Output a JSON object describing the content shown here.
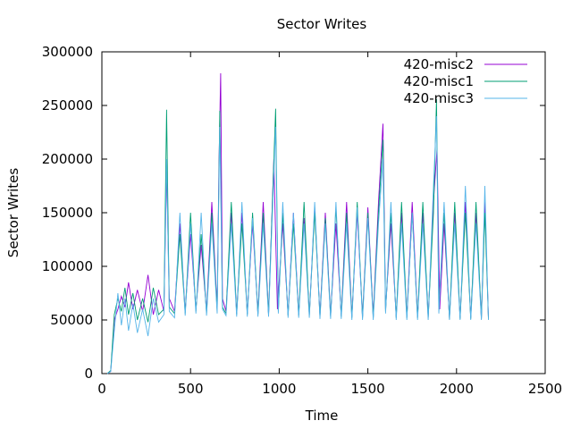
{
  "chart_data": {
    "type": "line",
    "title": "Sector Writes",
    "xlabel": "Time",
    "ylabel": "Sector Writes",
    "xlim": [
      0,
      2500
    ],
    "ylim": [
      0,
      300000
    ],
    "x_ticks": [
      "0",
      "500",
      "1000",
      "1500",
      "2000",
      "2500"
    ],
    "y_ticks": [
      "0",
      "50000",
      "100000",
      "150000",
      "200000",
      "250000",
      "300000"
    ],
    "grid": false,
    "legend_position": "top-right",
    "series": [
      {
        "name": "420-misc2",
        "color": "#9400d3",
        "points": [
          [
            0,
            0
          ],
          [
            30,
            0
          ],
          [
            50,
            2000
          ],
          [
            70,
            50000
          ],
          [
            90,
            60000
          ],
          [
            110,
            72000
          ],
          [
            130,
            62000
          ],
          [
            150,
            85000
          ],
          [
            175,
            60000
          ],
          [
            200,
            78000
          ],
          [
            230,
            58000
          ],
          [
            260,
            92000
          ],
          [
            290,
            55000
          ],
          [
            320,
            78000
          ],
          [
            350,
            58000
          ],
          [
            365,
            190000
          ],
          [
            380,
            70000
          ],
          [
            410,
            58000
          ],
          [
            440,
            140000
          ],
          [
            470,
            58000
          ],
          [
            500,
            130000
          ],
          [
            530,
            60000
          ],
          [
            560,
            120000
          ],
          [
            590,
            58000
          ],
          [
            620,
            160000
          ],
          [
            650,
            60000
          ],
          [
            660,
            190000
          ],
          [
            670,
            280000
          ],
          [
            680,
            70000
          ],
          [
            700,
            58000
          ],
          [
            730,
            150000
          ],
          [
            760,
            56000
          ],
          [
            790,
            150000
          ],
          [
            820,
            56000
          ],
          [
            850,
            140000
          ],
          [
            880,
            56000
          ],
          [
            910,
            160000
          ],
          [
            940,
            55000
          ],
          [
            970,
            200000
          ],
          [
            990,
            60000
          ],
          [
            1020,
            140000
          ],
          [
            1050,
            55000
          ],
          [
            1080,
            150000
          ],
          [
            1110,
            55000
          ],
          [
            1140,
            145000
          ],
          [
            1170,
            55000
          ],
          [
            1200,
            155000
          ],
          [
            1230,
            54000
          ],
          [
            1260,
            150000
          ],
          [
            1290,
            54000
          ],
          [
            1320,
            140000
          ],
          [
            1350,
            54000
          ],
          [
            1380,
            160000
          ],
          [
            1410,
            53000
          ],
          [
            1440,
            150000
          ],
          [
            1470,
            53000
          ],
          [
            1500,
            155000
          ],
          [
            1530,
            53000
          ],
          [
            1560,
            160000
          ],
          [
            1585,
            233000
          ],
          [
            1600,
            60000
          ],
          [
            1630,
            140000
          ],
          [
            1660,
            53000
          ],
          [
            1690,
            150000
          ],
          [
            1720,
            53000
          ],
          [
            1750,
            160000
          ],
          [
            1780,
            53000
          ],
          [
            1810,
            150000
          ],
          [
            1840,
            53000
          ],
          [
            1870,
            160000
          ],
          [
            1890,
            210000
          ],
          [
            1905,
            60000
          ],
          [
            1930,
            140000
          ],
          [
            1960,
            52000
          ],
          [
            1990,
            150000
          ],
          [
            2020,
            52000
          ],
          [
            2050,
            160000
          ],
          [
            2080,
            52000
          ],
          [
            2110,
            150000
          ],
          [
            2140,
            52000
          ],
          [
            2160,
            160000
          ],
          [
            2180,
            52000
          ]
        ]
      },
      {
        "name": "420-misc1",
        "color": "#009e73",
        "points": [
          [
            0,
            0
          ],
          [
            30,
            0
          ],
          [
            50,
            3000
          ],
          [
            70,
            55000
          ],
          [
            90,
            70000
          ],
          [
            110,
            58000
          ],
          [
            130,
            80000
          ],
          [
            150,
            55000
          ],
          [
            175,
            75000
          ],
          [
            200,
            50000
          ],
          [
            230,
            70000
          ],
          [
            260,
            48000
          ],
          [
            290,
            80000
          ],
          [
            320,
            55000
          ],
          [
            350,
            60000
          ],
          [
            365,
            246000
          ],
          [
            380,
            62000
          ],
          [
            410,
            56000
          ],
          [
            440,
            130000
          ],
          [
            470,
            56000
          ],
          [
            500,
            150000
          ],
          [
            530,
            58000
          ],
          [
            560,
            130000
          ],
          [
            590,
            56000
          ],
          [
            620,
            150000
          ],
          [
            650,
            58000
          ],
          [
            665,
            245000
          ],
          [
            680,
            62000
          ],
          [
            700,
            56000
          ],
          [
            730,
            160000
          ],
          [
            760,
            55000
          ],
          [
            790,
            140000
          ],
          [
            820,
            55000
          ],
          [
            850,
            150000
          ],
          [
            880,
            55000
          ],
          [
            910,
            150000
          ],
          [
            940,
            55000
          ],
          [
            980,
            247000
          ],
          [
            995,
            58000
          ],
          [
            1020,
            150000
          ],
          [
            1050,
            54000
          ],
          [
            1080,
            140000
          ],
          [
            1110,
            54000
          ],
          [
            1140,
            160000
          ],
          [
            1170,
            54000
          ],
          [
            1200,
            150000
          ],
          [
            1230,
            53000
          ],
          [
            1260,
            145000
          ],
          [
            1290,
            53000
          ],
          [
            1320,
            155000
          ],
          [
            1350,
            53000
          ],
          [
            1380,
            150000
          ],
          [
            1410,
            52000
          ],
          [
            1440,
            160000
          ],
          [
            1470,
            52000
          ],
          [
            1500,
            150000
          ],
          [
            1530,
            52000
          ],
          [
            1560,
            150000
          ],
          [
            1585,
            218000
          ],
          [
            1600,
            58000
          ],
          [
            1630,
            150000
          ],
          [
            1660,
            52000
          ],
          [
            1690,
            160000
          ],
          [
            1720,
            52000
          ],
          [
            1750,
            150000
          ],
          [
            1780,
            52000
          ],
          [
            1810,
            160000
          ],
          [
            1840,
            52000
          ],
          [
            1870,
            150000
          ],
          [
            1887,
            256000
          ],
          [
            1900,
            58000
          ],
          [
            1930,
            150000
          ],
          [
            1960,
            51000
          ],
          [
            1990,
            160000
          ],
          [
            2020,
            51000
          ],
          [
            2050,
            150000
          ],
          [
            2080,
            51000
          ],
          [
            2110,
            160000
          ],
          [
            2140,
            51000
          ],
          [
            2160,
            150000
          ],
          [
            2180,
            51000
          ]
        ]
      },
      {
        "name": "420-misc3",
        "color": "#56b4e9",
        "points": [
          [
            0,
            0
          ],
          [
            30,
            0
          ],
          [
            50,
            2000
          ],
          [
            70,
            40000
          ],
          [
            90,
            75000
          ],
          [
            110,
            45000
          ],
          [
            130,
            70000
          ],
          [
            150,
            40000
          ],
          [
            175,
            65000
          ],
          [
            200,
            38000
          ],
          [
            230,
            60000
          ],
          [
            260,
            35000
          ],
          [
            290,
            70000
          ],
          [
            320,
            48000
          ],
          [
            350,
            55000
          ],
          [
            365,
            200000
          ],
          [
            380,
            58000
          ],
          [
            410,
            52000
          ],
          [
            440,
            150000
          ],
          [
            470,
            54000
          ],
          [
            500,
            140000
          ],
          [
            530,
            56000
          ],
          [
            560,
            150000
          ],
          [
            590,
            54000
          ],
          [
            620,
            140000
          ],
          [
            650,
            56000
          ],
          [
            665,
            230000
          ],
          [
            680,
            60000
          ],
          [
            700,
            54000
          ],
          [
            730,
            140000
          ],
          [
            760,
            53000
          ],
          [
            790,
            160000
          ],
          [
            820,
            53000
          ],
          [
            850,
            145000
          ],
          [
            880,
            53000
          ],
          [
            910,
            140000
          ],
          [
            940,
            53000
          ],
          [
            980,
            230000
          ],
          [
            995,
            56000
          ],
          [
            1020,
            160000
          ],
          [
            1050,
            52000
          ],
          [
            1080,
            150000
          ],
          [
            1110,
            52000
          ],
          [
            1140,
            140000
          ],
          [
            1170,
            52000
          ],
          [
            1200,
            160000
          ],
          [
            1230,
            51000
          ],
          [
            1260,
            140000
          ],
          [
            1290,
            51000
          ],
          [
            1320,
            160000
          ],
          [
            1350,
            51000
          ],
          [
            1380,
            140000
          ],
          [
            1410,
            50000
          ],
          [
            1440,
            155000
          ],
          [
            1470,
            50000
          ],
          [
            1500,
            145000
          ],
          [
            1530,
            50000
          ],
          [
            1560,
            140000
          ],
          [
            1585,
            200000
          ],
          [
            1600,
            56000
          ],
          [
            1630,
            160000
          ],
          [
            1660,
            50000
          ],
          [
            1690,
            140000
          ],
          [
            1720,
            50000
          ],
          [
            1750,
            150000
          ],
          [
            1780,
            50000
          ],
          [
            1810,
            140000
          ],
          [
            1840,
            50000
          ],
          [
            1870,
            175000
          ],
          [
            1887,
            240000
          ],
          [
            1900,
            56000
          ],
          [
            1930,
            160000
          ],
          [
            1960,
            50000
          ],
          [
            1990,
            140000
          ],
          [
            2020,
            50000
          ],
          [
            2050,
            175000
          ],
          [
            2080,
            50000
          ],
          [
            2110,
            140000
          ],
          [
            2140,
            50000
          ],
          [
            2160,
            175000
          ],
          [
            2180,
            50000
          ]
        ]
      }
    ]
  }
}
